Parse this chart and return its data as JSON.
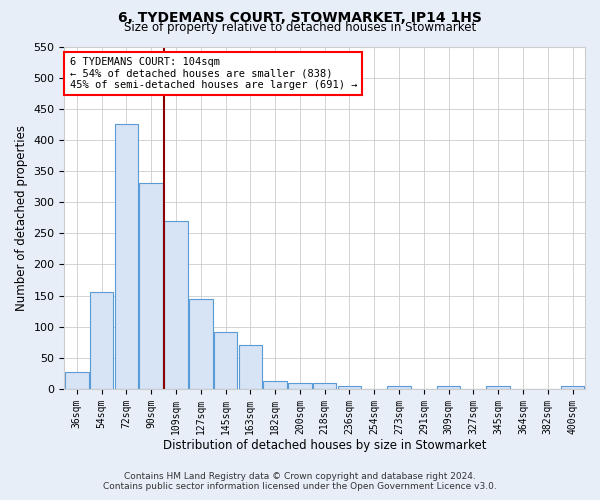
{
  "title": "6, TYDEMANS COURT, STOWMARKET, IP14 1HS",
  "subtitle": "Size of property relative to detached houses in Stowmarket",
  "xlabel": "Distribution of detached houses by size in Stowmarket",
  "ylabel": "Number of detached properties",
  "categories": [
    "36sqm",
    "54sqm",
    "72sqm",
    "90sqm",
    "109sqm",
    "127sqm",
    "145sqm",
    "163sqm",
    "182sqm",
    "200sqm",
    "218sqm",
    "236sqm",
    "254sqm",
    "273sqm",
    "291sqm",
    "309sqm",
    "327sqm",
    "345sqm",
    "364sqm",
    "382sqm",
    "400sqm"
  ],
  "values": [
    28,
    155,
    425,
    330,
    270,
    145,
    92,
    70,
    13,
    10,
    10,
    5,
    0,
    5,
    0,
    5,
    0,
    5,
    0,
    0,
    5
  ],
  "bar_color": "#d6e4f5",
  "bar_edge_color": "#5b9bd5",
  "red_line_index": 3,
  "annotation_title": "6 TYDEMANS COURT: 104sqm",
  "annotation_line1": "← 54% of detached houses are smaller (838)",
  "annotation_line2": "45% of semi-detached houses are larger (691) →",
  "ylim": [
    0,
    550
  ],
  "yticks": [
    0,
    50,
    100,
    150,
    200,
    250,
    300,
    350,
    400,
    450,
    500,
    550
  ],
  "footer_line1": "Contains HM Land Registry data © Crown copyright and database right 2024.",
  "footer_line2": "Contains public sector information licensed under the Open Government Licence v3.0.",
  "outer_bg_color": "#e8eef8",
  "plot_bg_color": "#ffffff"
}
